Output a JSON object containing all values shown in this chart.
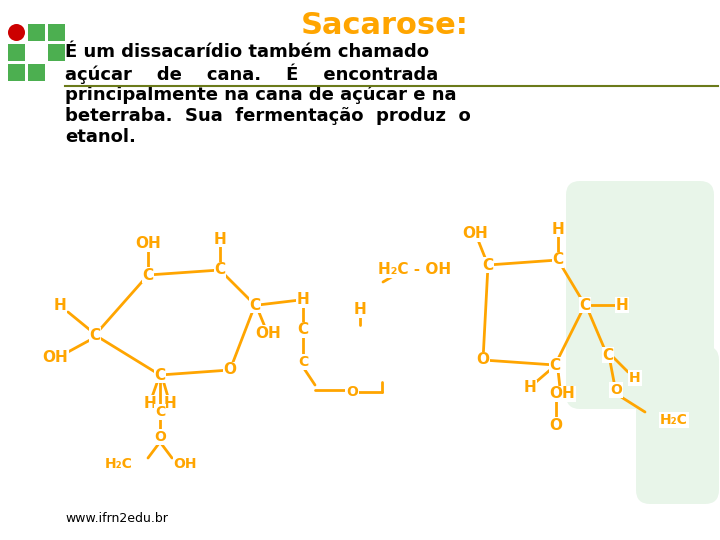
{
  "bg": "#ffffff",
  "orange": "#FFA500",
  "green": "#4CAF50",
  "light_green": "#e8f5e9",
  "red": "#CC0000",
  "black": "#000000",
  "olive": "#6B7A1A",
  "title": "Sacarose:",
  "line1": "É um dissacarídio também chamado",
  "line2": "açúcar    de    cana.    É    encontrada",
  "line3": "principalmente na cana de açúcar e na",
  "line4": "beterraba.  Sua  fermentação  produz  o",
  "line5": "etanol.",
  "footer": "www.ifrn2edu.br"
}
